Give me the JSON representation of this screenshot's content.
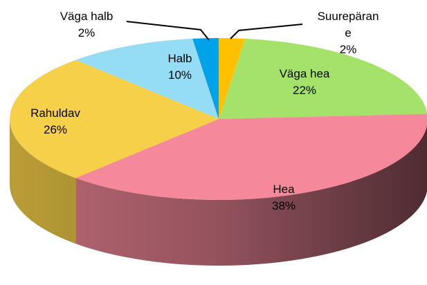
{
  "chart_data": {
    "type": "pie",
    "categories": [
      "Suurepärane",
      "Väga hea",
      "Hea",
      "Rahuldav",
      "Halb",
      "Väga halb"
    ],
    "values": [
      2,
      22,
      38,
      26,
      10,
      2
    ],
    "value_labels": [
      "2%",
      "22%",
      "38%",
      "26%",
      "10%",
      "2%"
    ],
    "colors": [
      "#ffc000",
      "#a5e26a",
      "#f5899b",
      "#f5d048",
      "#95dcf5",
      "#00a2e8"
    ]
  }
}
